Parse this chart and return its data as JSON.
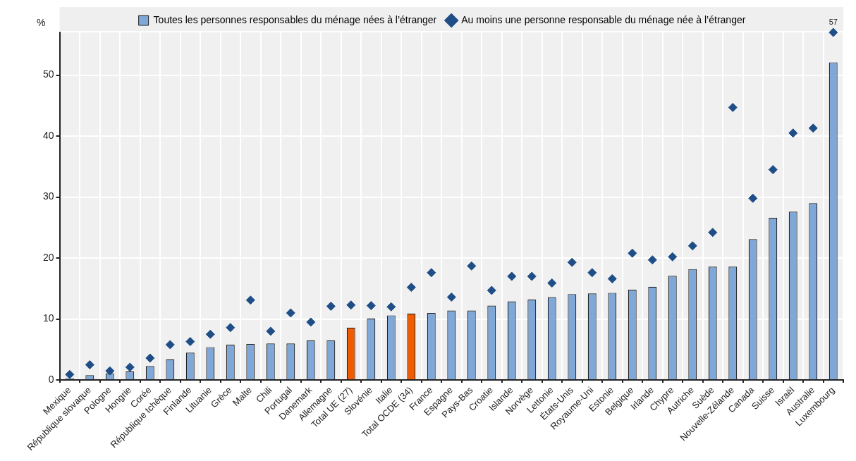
{
  "chart_data": {
    "type": "bar",
    "ylabel": "%",
    "categories": [
      "Mexique",
      "République slovaque",
      "Pologne",
      "Hongrie",
      "Corée",
      "République tchèque",
      "Finlande",
      "Lituanie",
      "Grèce",
      "Malte",
      "Chili",
      "Portugal",
      "Danemark",
      "Allemagne",
      "Total UE (27)",
      "Slovénie",
      "Italie",
      "Total OCDE (34)",
      "France",
      "Espagne",
      "Pays-Bas",
      "Croatie",
      "Islande",
      "Norvège",
      "Lettonie",
      "États-Unis",
      "Royaume-Uni",
      "Estonie",
      "Belgique",
      "Irlande",
      "Chypre",
      "Autriche",
      "Suède",
      "Nouvelle-Zélande",
      "Canada",
      "Suisse",
      "Israël",
      "Australie",
      "Luxembourg"
    ],
    "series": [
      {
        "name": "Toutes les personnes responsables du ménage nées à l’étranger",
        "color": "#7fa8d9",
        "colors": [
          "#7fa8d9",
          "#7fa8d9",
          "#7fa8d9",
          "#7fa8d9",
          "#7fa8d9",
          "#7fa8d9",
          "#7fa8d9",
          "#7fa8d9",
          "#7fa8d9",
          "#7fa8d9",
          "#7fa8d9",
          "#7fa8d9",
          "#7fa8d9",
          "#7fa8d9",
          "#f05a00",
          "#7fa8d9",
          "#7fa8d9",
          "#f05a00",
          "#7fa8d9",
          "#7fa8d9",
          "#7fa8d9",
          "#7fa8d9",
          "#7fa8d9",
          "#7fa8d9",
          "#7fa8d9",
          "#7fa8d9",
          "#7fa8d9",
          "#7fa8d9",
          "#7fa8d9",
          "#7fa8d9",
          "#7fa8d9",
          "#7fa8d9",
          "#7fa8d9",
          "#7fa8d9",
          "#7fa8d9",
          "#7fa8d9",
          "#7fa8d9",
          "#7fa8d9",
          "#7fa8d9"
        ],
        "values": [
          0.3,
          0.8,
          1.1,
          1.4,
          2.3,
          3.4,
          4.5,
          5.4,
          5.8,
          5.9,
          6.0,
          6.0,
          6.5,
          6.5,
          8.6,
          10.1,
          10.6,
          10.9,
          11.0,
          11.4,
          11.4,
          12.2,
          12.9,
          13.2,
          13.6,
          14.1,
          14.2,
          14.3,
          14.8,
          15.3,
          17.1,
          18.2,
          18.6,
          18.6,
          23.1,
          26.6,
          27.6,
          29.0,
          52.1
        ]
      },
      {
        "name": "Au moins une personne responsable du ménage née à l’étranger",
        "type": "scatter",
        "marker": "diamond",
        "color": "#1f4e87",
        "values": [
          0.9,
          2.5,
          1.5,
          2.1,
          3.6,
          5.8,
          6.3,
          7.5,
          8.6,
          13.1,
          8.0,
          11.0,
          9.5,
          12.1,
          12.3,
          12.2,
          12.0,
          15.2,
          17.6,
          13.6,
          18.7,
          14.7,
          17.0,
          17.0,
          15.9,
          19.3,
          17.6,
          16.6,
          20.8,
          19.7,
          20.2,
          22.0,
          24.2,
          44.7,
          29.8,
          34.5,
          40.5,
          41.3,
          57
        ],
        "value_labels": [
          null,
          null,
          null,
          null,
          null,
          null,
          null,
          null,
          null,
          null,
          null,
          null,
          null,
          null,
          null,
          null,
          null,
          null,
          null,
          null,
          null,
          null,
          null,
          null,
          null,
          null,
          null,
          null,
          null,
          null,
          null,
          null,
          null,
          null,
          null,
          null,
          null,
          null,
          "57"
        ]
      }
    ],
    "ylim": [
      0,
      57
    ],
    "yticks": [
      0,
      10,
      20,
      30,
      40,
      50
    ],
    "grid": true,
    "legend": "top"
  }
}
